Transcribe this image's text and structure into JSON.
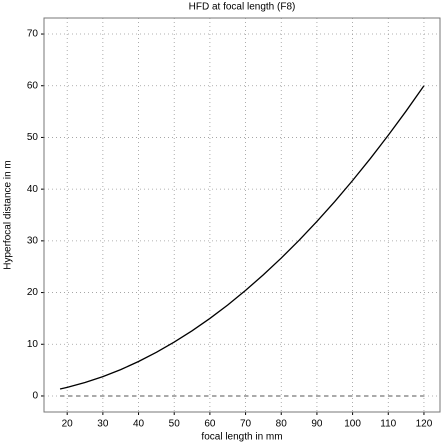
{
  "chart_data": {
    "type": "line",
    "title": "HFD at focal length (F8)",
    "x_label": "focal length in mm",
    "y_label": "Hyperfocal distance in m",
    "x": [
      18,
      20,
      25,
      30,
      35,
      40,
      45,
      50,
      55,
      60,
      65,
      70,
      75,
      80,
      85,
      90,
      95,
      100,
      105,
      110,
      115,
      120
    ],
    "series": [
      {
        "color": "#000000",
        "dashed": false,
        "values": [
          1.35,
          1.67,
          2.6,
          3.75,
          5.1,
          6.67,
          8.44,
          10.42,
          12.6,
          15,
          17.6,
          20.42,
          23.44,
          26.67,
          30.1,
          33.75,
          37.6,
          41.67,
          45.94,
          50.42,
          55.1,
          60
        ]
      },
      {
        "color": "#555555",
        "dashed": true,
        "values": [
          0,
          0,
          0,
          0,
          0,
          0,
          0,
          0,
          0,
          0,
          0,
          0,
          0,
          0,
          0,
          0,
          0,
          0,
          0,
          0,
          0,
          0
        ]
      }
    ],
    "xlim": [
      13.5,
      124.5
    ],
    "ylim": [
      -3.1,
      73.1
    ],
    "xticks": [
      20,
      30,
      40,
      50,
      60,
      70,
      80,
      90,
      100,
      110,
      120
    ],
    "yticks": [
      0,
      10,
      20,
      30,
      40,
      50,
      60,
      70
    ],
    "grid": true
  }
}
